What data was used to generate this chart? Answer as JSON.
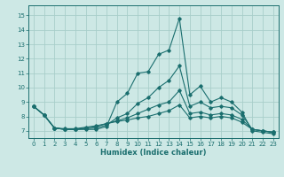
{
  "xlabel": "Humidex (Indice chaleur)",
  "bg_color": "#cde8e5",
  "grid_color": "#a8ceca",
  "line_color": "#1a6e6e",
  "xlim": [
    -0.5,
    23.5
  ],
  "ylim": [
    6.5,
    15.7
  ],
  "xticks": [
    0,
    1,
    2,
    3,
    4,
    5,
    6,
    7,
    8,
    9,
    10,
    11,
    12,
    13,
    14,
    15,
    16,
    17,
    18,
    19,
    20,
    21,
    22,
    23
  ],
  "yticks": [
    7,
    8,
    9,
    10,
    11,
    12,
    13,
    14,
    15
  ],
  "series": [
    [
      8.7,
      8.1,
      7.2,
      7.1,
      7.1,
      7.1,
      7.1,
      7.3,
      9.0,
      9.6,
      11.0,
      11.1,
      12.3,
      12.6,
      14.8,
      9.5,
      10.1,
      9.0,
      9.3,
      9.0,
      8.3,
      7.0,
      6.9,
      6.8
    ],
    [
      8.7,
      8.1,
      7.2,
      7.1,
      7.1,
      7.15,
      7.2,
      7.4,
      7.9,
      8.2,
      8.9,
      9.3,
      10.0,
      10.5,
      11.5,
      8.7,
      9.0,
      8.6,
      8.7,
      8.6,
      8.1,
      7.1,
      7.0,
      6.9
    ],
    [
      8.7,
      8.1,
      7.2,
      7.1,
      7.1,
      7.2,
      7.3,
      7.5,
      7.7,
      7.9,
      8.2,
      8.5,
      8.8,
      9.0,
      9.8,
      8.2,
      8.3,
      8.1,
      8.2,
      8.1,
      7.8,
      7.1,
      7.0,
      6.9
    ],
    [
      8.7,
      8.1,
      7.2,
      7.15,
      7.15,
      7.25,
      7.35,
      7.5,
      7.65,
      7.75,
      7.9,
      8.0,
      8.2,
      8.4,
      8.8,
      7.9,
      8.0,
      7.9,
      8.0,
      7.9,
      7.6,
      7.1,
      7.0,
      6.9
    ]
  ]
}
